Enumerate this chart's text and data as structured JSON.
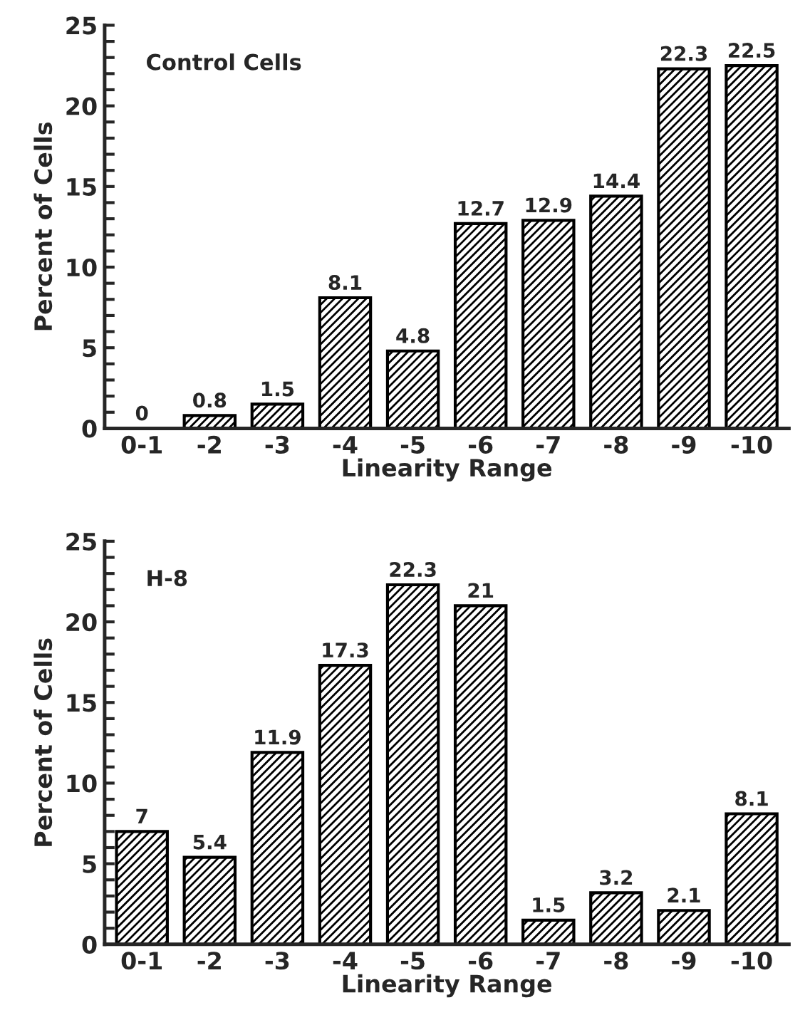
{
  "chart_data": [
    {
      "type": "bar",
      "title": "Control Cells",
      "xlabel": "Linearity Range",
      "ylabel": "Percent of Cells",
      "categories": [
        "0-1",
        "-2",
        "-3",
        "-4",
        "-5",
        "-6",
        "-7",
        "-8",
        "-9",
        "-10"
      ],
      "values": [
        0,
        0.8,
        1.5,
        8.1,
        4.8,
        12.7,
        12.9,
        14.4,
        22.3,
        22.5
      ],
      "color": "#000000",
      "ylim": [
        0,
        25
      ],
      "yticks": [
        0,
        {
          "value": 1,
          "label": null
        },
        {
          "value": 2,
          "label": null
        },
        {
          "value": 3,
          "label": null
        },
        {
          "value": 4,
          "label": null
        },
        5,
        {
          "value": 6,
          "label": null
        },
        {
          "value": 7,
          "label": null
        },
        {
          "value": 8,
          "label": null
        },
        {
          "value": 9,
          "label": null
        },
        10,
        {
          "value": 11,
          "label": null
        },
        {
          "value": 12,
          "label": null
        },
        {
          "value": 13,
          "label": null
        },
        {
          "value": 14,
          "label": null
        },
        15,
        {
          "value": 16,
          "label": null
        },
        {
          "value": 17,
          "label": null
        },
        {
          "value": 18,
          "label": null
        },
        {
          "value": 19,
          "label": null
        },
        20,
        {
          "value": 21,
          "label": null
        },
        {
          "value": 22,
          "label": null
        },
        {
          "value": 23,
          "label": null
        },
        {
          "value": 24,
          "label": null
        },
        25
      ],
      "data_labels": true,
      "grid": false,
      "legend": false
    },
    {
      "type": "bar",
      "title": "H-8",
      "xlabel": "Linearity Range",
      "ylabel": "Percent of Cells",
      "categories": [
        "0-1",
        "-2",
        "-3",
        "-4",
        "-5",
        "-6",
        "-7",
        "-8",
        "-9",
        "-10"
      ],
      "values": [
        7,
        5.4,
        11.9,
        17.3,
        22.3,
        21,
        1.5,
        3.2,
        2.1,
        8.1
      ],
      "color": "#000000",
      "ylim": [
        0,
        25
      ],
      "yticks": [
        0,
        {
          "value": 1,
          "label": null
        },
        {
          "value": 2,
          "label": null
        },
        {
          "value": 3,
          "label": null
        },
        {
          "value": 4,
          "label": null
        },
        5,
        {
          "value": 6,
          "label": null
        },
        {
          "value": 7,
          "label": null
        },
        {
          "value": 8,
          "label": null
        },
        {
          "value": 9,
          "label": null
        },
        10,
        {
          "value": 11,
          "label": null
        },
        {
          "value": 12,
          "label": null
        },
        {
          "value": 13,
          "label": null
        },
        {
          "value": 14,
          "label": null
        },
        15,
        {
          "value": 16,
          "label": null
        },
        {
          "value": 17,
          "label": null
        },
        {
          "value": 18,
          "label": null
        },
        {
          "value": 19,
          "label": null
        },
        20,
        {
          "value": 21,
          "label": null
        },
        {
          "value": 22,
          "label": null
        },
        {
          "value": 23,
          "label": null
        },
        {
          "value": 24,
          "label": null
        },
        25
      ],
      "data_labels": true,
      "grid": false,
      "legend": false
    }
  ]
}
